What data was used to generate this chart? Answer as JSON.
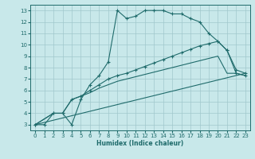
{
  "background_color": "#c8e8ea",
  "grid_color": "#a0c8cc",
  "line_color": "#1f6b6b",
  "xlabel": "Humidex (Indice chaleur)",
  "xlim": [
    -0.5,
    23.5
  ],
  "ylim": [
    2.5,
    13.5
  ],
  "xticks": [
    0,
    1,
    2,
    3,
    4,
    5,
    6,
    7,
    8,
    9,
    10,
    11,
    12,
    13,
    14,
    15,
    16,
    17,
    18,
    19,
    20,
    21,
    22,
    23
  ],
  "yticks": [
    3,
    4,
    5,
    6,
    7,
    8,
    9,
    10,
    11,
    12,
    13
  ],
  "series": [
    {
      "x": [
        0,
        1,
        2,
        3,
        4,
        5,
        6,
        7,
        8,
        9,
        10,
        11,
        12,
        13,
        14,
        15,
        16,
        17,
        18,
        19,
        20,
        21,
        22,
        23
      ],
      "y": [
        3,
        3,
        4,
        4,
        3,
        5.2,
        6.5,
        7.3,
        8.5,
        13,
        12.3,
        12.5,
        13,
        13,
        13,
        12.7,
        12.7,
        12.3,
        12,
        11,
        10.3,
        9.5,
        7.5,
        7.3
      ],
      "marker": true
    },
    {
      "x": [
        0,
        2,
        3,
        4,
        5,
        6,
        7,
        8,
        9,
        10,
        11,
        12,
        13,
        14,
        15,
        16,
        17,
        18,
        19,
        20,
        21,
        22,
        23
      ],
      "y": [
        3,
        4,
        4,
        5.2,
        5.5,
        6.0,
        6.5,
        7.0,
        7.3,
        7.5,
        7.8,
        8.1,
        8.4,
        8.7,
        9.0,
        9.3,
        9.6,
        9.9,
        10.1,
        10.3,
        9.5,
        7.8,
        7.5
      ],
      "marker": true
    },
    {
      "x": [
        0,
        23
      ],
      "y": [
        3,
        7.5
      ],
      "marker": false
    },
    {
      "x": [
        0,
        2,
        3,
        4,
        5,
        6,
        7,
        8,
        9,
        10,
        11,
        12,
        13,
        14,
        15,
        16,
        17,
        18,
        19,
        20,
        21,
        22,
        23
      ],
      "y": [
        3,
        4,
        4,
        5.2,
        5.5,
        5.8,
        6.2,
        6.5,
        6.8,
        7.0,
        7.2,
        7.4,
        7.6,
        7.8,
        8.0,
        8.2,
        8.4,
        8.6,
        8.8,
        9.0,
        7.5,
        7.5,
        7.3
      ],
      "marker": false
    }
  ]
}
